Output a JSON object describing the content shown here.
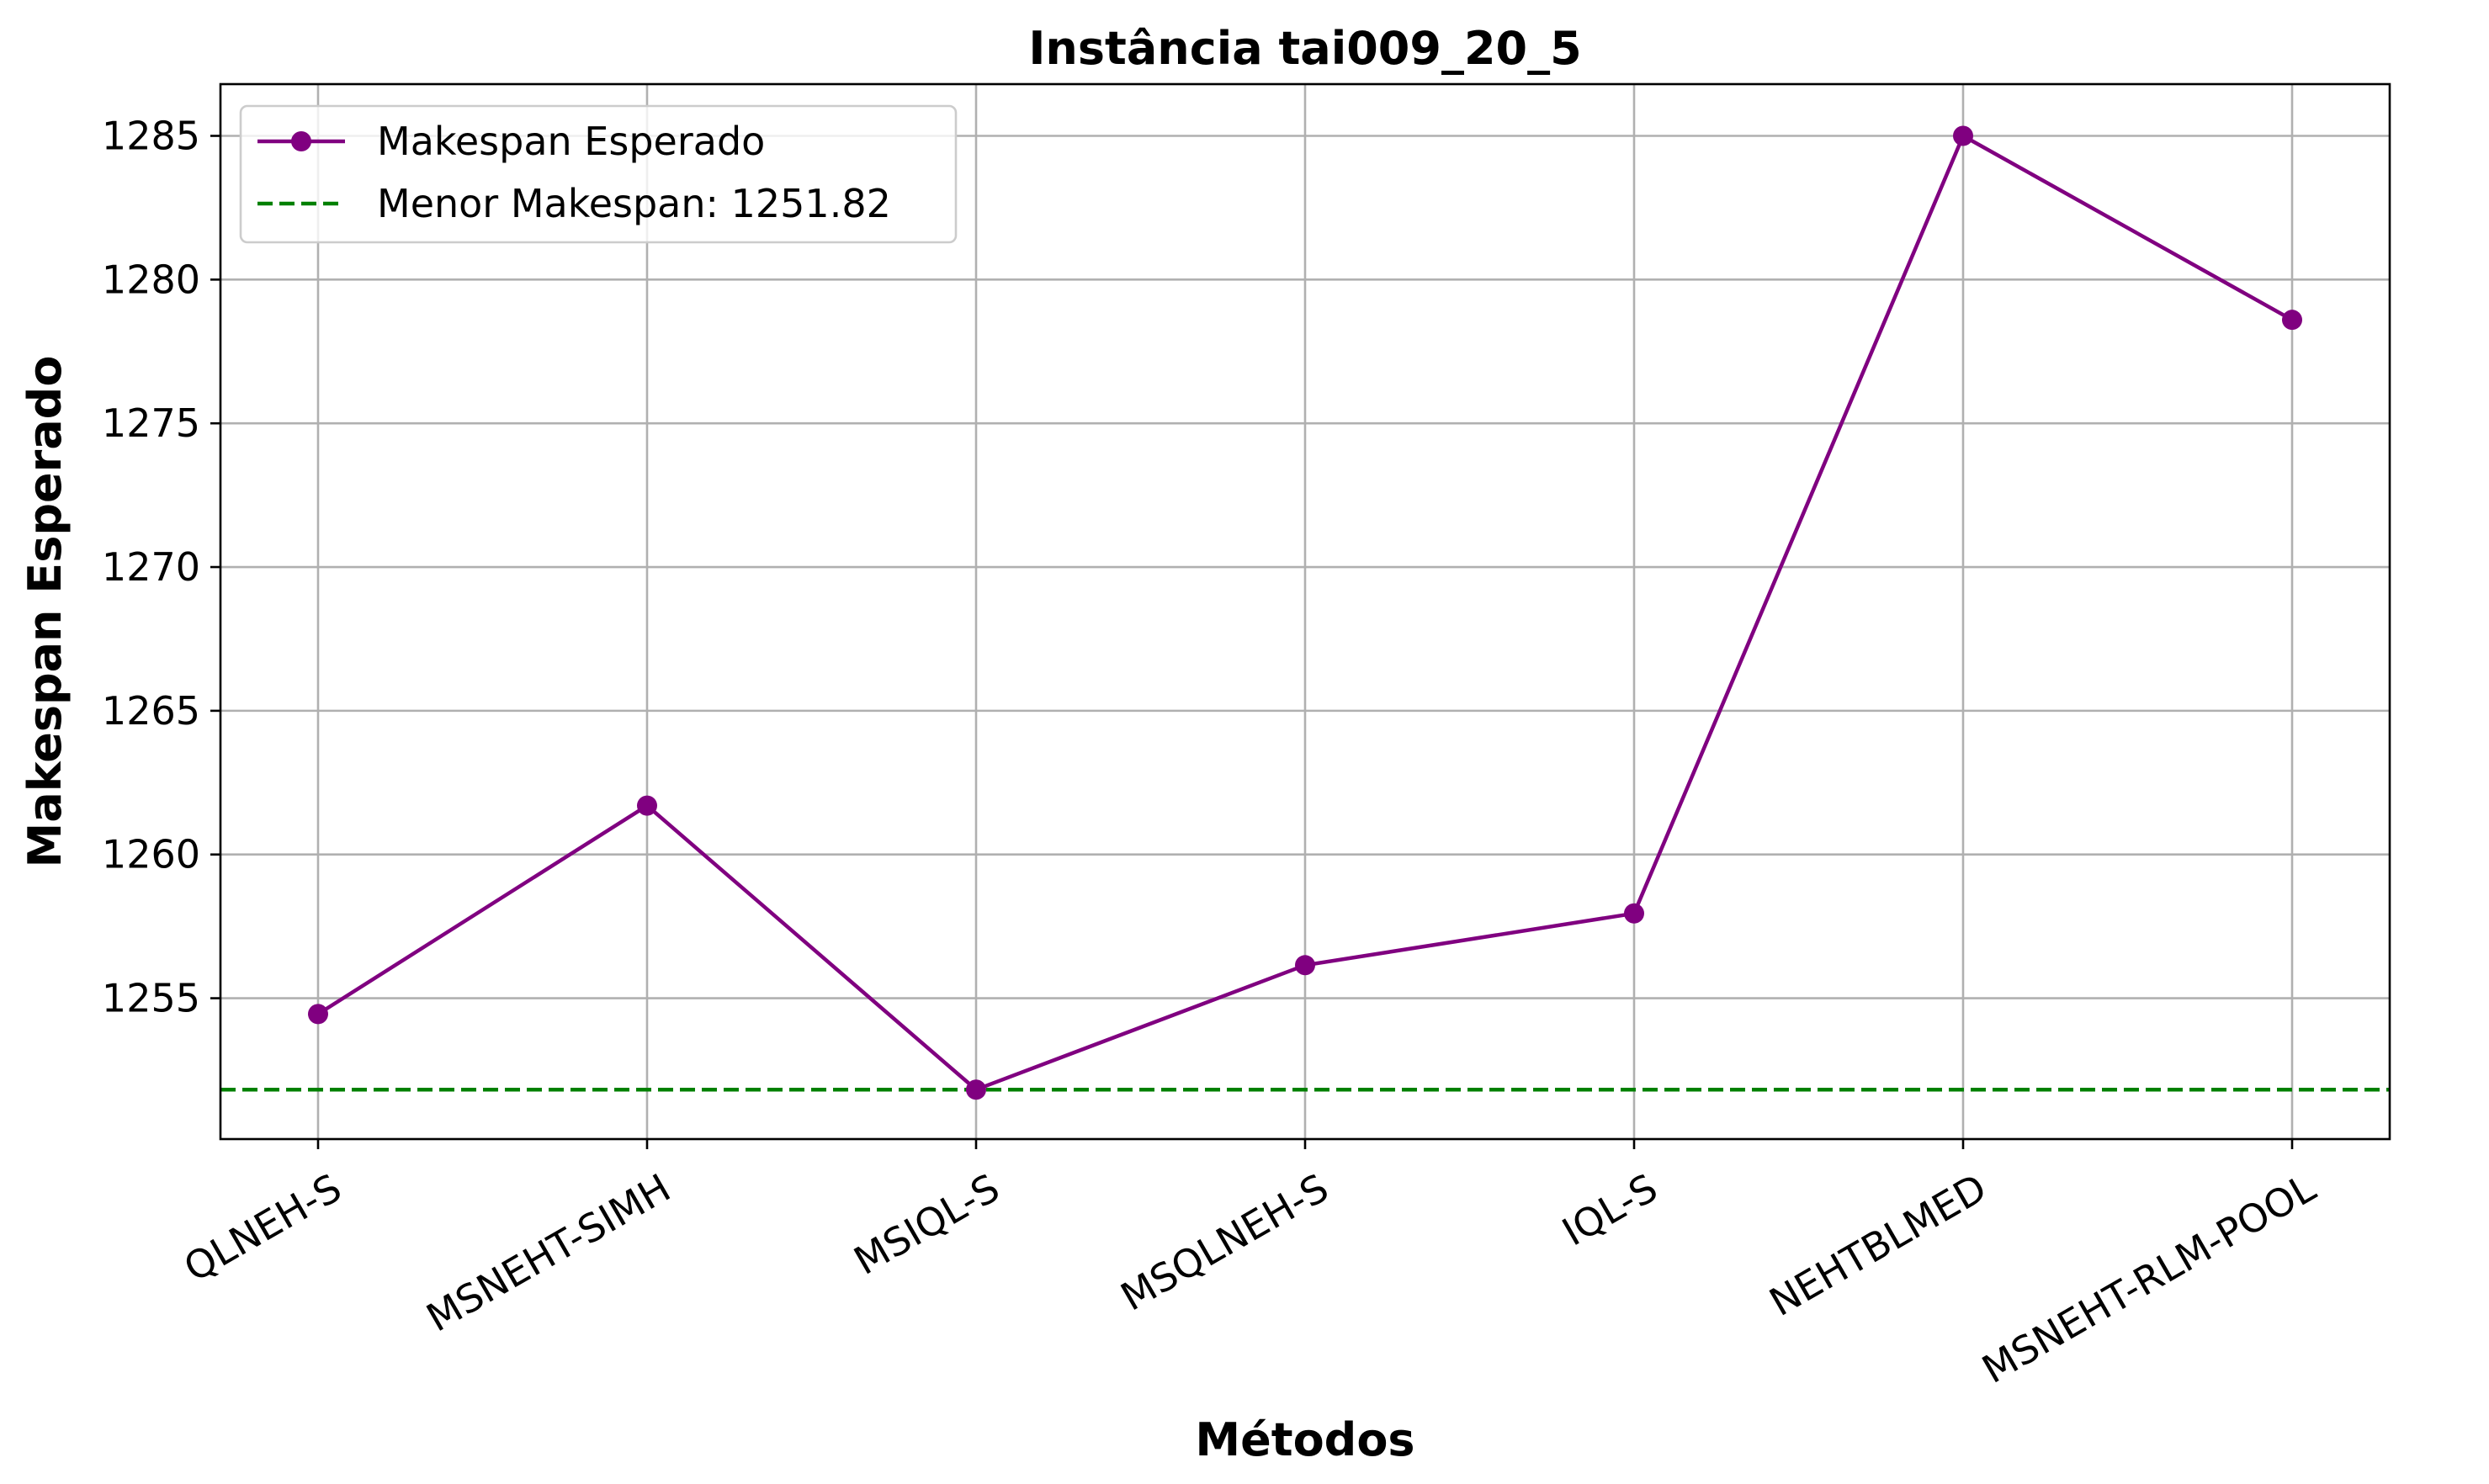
{
  "chart_data": {
    "type": "line",
    "title": "Instância tai009_20_5",
    "xlabel": "Métodos",
    "ylabel": "Makespan Esperado",
    "categories": [
      "QLNEH-S",
      "MSNEHT-SIMH",
      "MSIQL-S",
      "MSQLNEH-S",
      "IQL-S",
      "NEHTBLMED",
      "MSNEHT-RLM-POOL"
    ],
    "series": [
      {
        "name": "Makespan Esperado",
        "values": [
          1254.45,
          1261.7,
          1251.82,
          1256.15,
          1257.95,
          1285.0,
          1278.6
        ],
        "color": "#800080",
        "marker": "circle"
      }
    ],
    "reference_line": {
      "label": "Menor Makespan: 1251.82",
      "value": 1251.82,
      "color": "#008000",
      "style": "dashed"
    },
    "yticks": [
      "1255",
      "1260",
      "1265",
      "1270",
      "1275",
      "1280",
      "1285"
    ],
    "ylim": [
      1250.1,
      1286.8
    ],
    "grid": true,
    "legend_position": "top-left"
  }
}
